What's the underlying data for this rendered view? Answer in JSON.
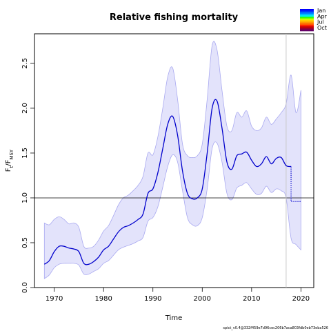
{
  "chart_data": {
    "type": "line",
    "title": "Relative fishing mortality",
    "xlabel": "Time",
    "ylabel_main": "F",
    "ylabel_sub1": "t",
    "ylabel_sep": "/F",
    "ylabel_sub2": "MSY",
    "xlim": [
      1966,
      2022.6
    ],
    "ylim": [
      0,
      2.83
    ],
    "xticks": [
      "1970",
      "1980",
      "1990",
      "2000",
      "2010",
      "2020"
    ],
    "yticks": [
      "0.0",
      "0.5",
      "1.0",
      "1.5",
      "2.0",
      "2.5"
    ],
    "reference_line": 1.0,
    "vertical_line_x": 2017,
    "legend": [
      "Jan",
      "Apr",
      "Jul",
      "Oct"
    ],
    "legend_colors": [
      "#0000ff",
      "#0033ff",
      "#0077ff",
      "#00bbff",
      "#00eeee",
      "#33ff00",
      "#ccff00",
      "#ffcc00",
      "#ff9900",
      "#ff6600",
      "#ff2200",
      "#cc0000",
      "#990033",
      "#660066"
    ],
    "series": [
      {
        "role": "estimate",
        "color": "#0000cc",
        "x": [
          1968,
          1969,
          1970,
          1971,
          1972,
          1973,
          1974,
          1975,
          1976,
          1977,
          1978,
          1979,
          1980,
          1981,
          1982,
          1983,
          1984,
          1985,
          1986,
          1987,
          1988,
          1989,
          1990,
          1991,
          1992,
          1993,
          1994,
          1995,
          1996,
          1997,
          1998,
          1999,
          2000,
          2001,
          2002,
          2003,
          2004,
          2005,
          2006,
          2007,
          2008,
          2009,
          2010,
          2011,
          2012,
          2013,
          2014,
          2015,
          2016,
          2017,
          2018
        ],
        "y": [
          0.26,
          0.3,
          0.4,
          0.46,
          0.46,
          0.44,
          0.43,
          0.4,
          0.27,
          0.26,
          0.29,
          0.34,
          0.42,
          0.46,
          0.54,
          0.62,
          0.67,
          0.69,
          0.72,
          0.76,
          0.82,
          1.05,
          1.1,
          1.28,
          1.55,
          1.82,
          1.91,
          1.7,
          1.3,
          1.05,
          0.99,
          1.0,
          1.1,
          1.5,
          2.0,
          2.08,
          1.78,
          1.4,
          1.32,
          1.47,
          1.49,
          1.51,
          1.42,
          1.35,
          1.38,
          1.46,
          1.38,
          1.44,
          1.45,
          1.36,
          1.35
        ]
      },
      {
        "role": "upper",
        "x": [
          1968,
          1969,
          1970,
          1971,
          1972,
          1973,
          1974,
          1975,
          1976,
          1977,
          1978,
          1979,
          1980,
          1981,
          1982,
          1983,
          1984,
          1985,
          1986,
          1987,
          1988,
          1989,
          1990,
          1991,
          1992,
          1993,
          1994,
          1995,
          1996,
          1997,
          1998,
          1999,
          2000,
          2001,
          2002,
          2003,
          2004,
          2005,
          2006,
          2007,
          2008,
          2009,
          2010,
          2011,
          2012,
          2013,
          2014,
          2015,
          2016,
          2017,
          2018,
          2019,
          2020
        ],
        "y": [
          0.72,
          0.7,
          0.76,
          0.79,
          0.76,
          0.71,
          0.72,
          0.67,
          0.46,
          0.44,
          0.46,
          0.53,
          0.63,
          0.69,
          0.8,
          0.92,
          1.0,
          1.03,
          1.08,
          1.14,
          1.24,
          1.5,
          1.48,
          1.68,
          2.0,
          2.35,
          2.45,
          2.1,
          1.6,
          1.47,
          1.45,
          1.47,
          1.6,
          2.1,
          2.7,
          2.65,
          2.2,
          1.8,
          1.75,
          1.95,
          1.9,
          1.97,
          1.8,
          1.75,
          1.78,
          1.9,
          1.82,
          1.88,
          1.95,
          2.05,
          2.37,
          1.95,
          2.2
        ]
      },
      {
        "role": "lower",
        "x": [
          1968,
          1969,
          1970,
          1971,
          1972,
          1973,
          1974,
          1975,
          1976,
          1977,
          1978,
          1979,
          1980,
          1981,
          1982,
          1983,
          1984,
          1985,
          1986,
          1987,
          1988,
          1989,
          1990,
          1991,
          1992,
          1993,
          1994,
          1995,
          1996,
          1997,
          1998,
          1999,
          2000,
          2001,
          2002,
          2003,
          2004,
          2005,
          2006,
          2007,
          2008,
          2009,
          2010,
          2011,
          2012,
          2013,
          2014,
          2015,
          2016,
          2017,
          2018,
          2019,
          2020
        ],
        "y": [
          0.1,
          0.14,
          0.22,
          0.26,
          0.27,
          0.27,
          0.27,
          0.25,
          0.15,
          0.15,
          0.18,
          0.21,
          0.27,
          0.3,
          0.36,
          0.42,
          0.45,
          0.47,
          0.49,
          0.52,
          0.56,
          0.74,
          0.78,
          0.9,
          1.12,
          1.35,
          1.48,
          1.4,
          1.08,
          0.78,
          0.7,
          0.69,
          0.78,
          1.1,
          1.55,
          1.61,
          1.4,
          1.05,
          0.98,
          1.11,
          1.14,
          1.17,
          1.1,
          1.04,
          1.05,
          1.13,
          1.06,
          1.1,
          1.08,
          1.0,
          0.55,
          0.48,
          0.42
        ]
      },
      {
        "role": "prediction",
        "style": "dotted",
        "x": [
          2018,
          2018,
          2020
        ],
        "y": [
          1.35,
          0.96,
          0.96
        ]
      }
    ],
    "footer": "spict_v0.4@332f459e7d96cec206b7aca803fdb0eb73eba526"
  }
}
